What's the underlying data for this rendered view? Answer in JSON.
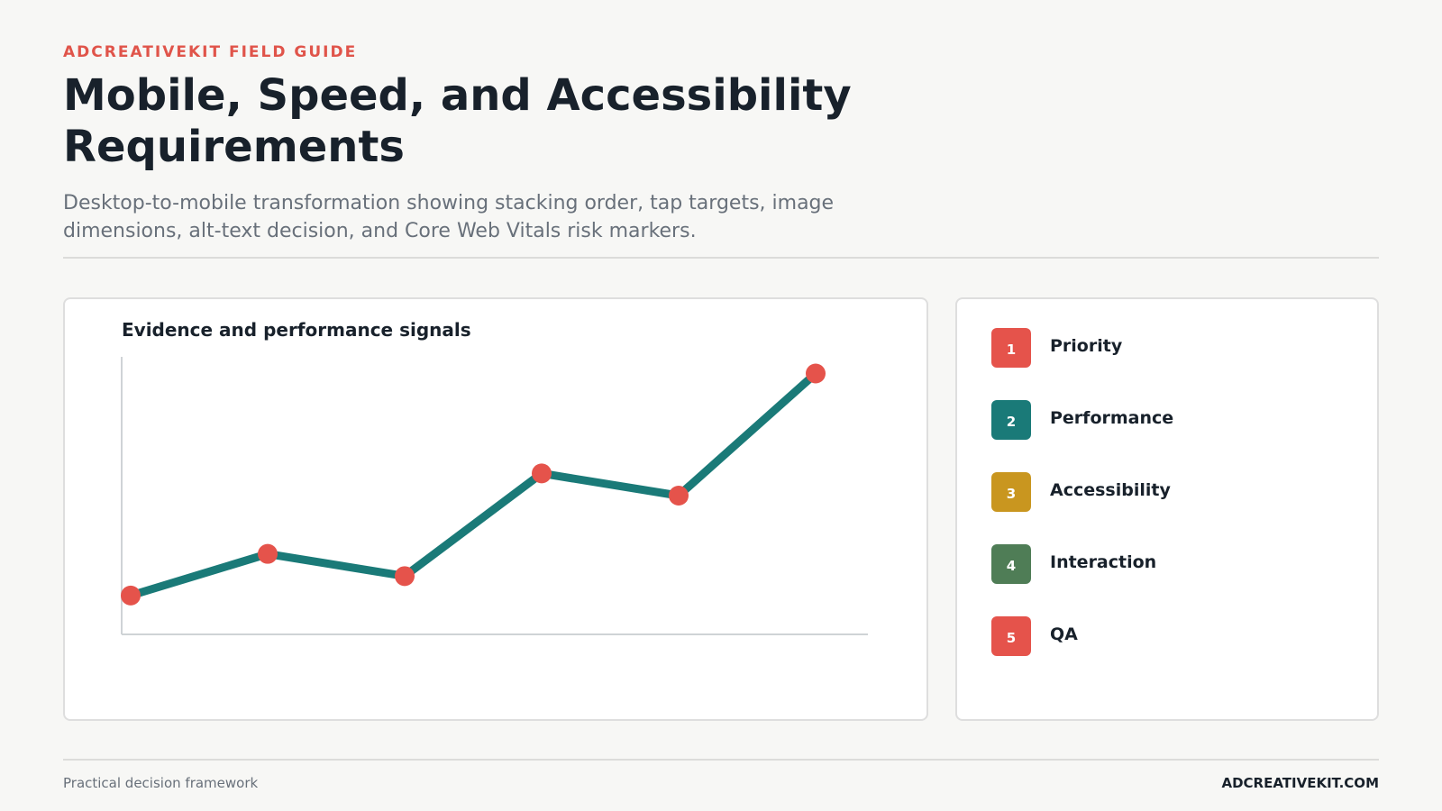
{
  "header": {
    "eyebrow": "ADCREATIVEKIT FIELD GUIDE",
    "title": "Mobile, Speed, and Accessibility Requirements",
    "subtitle": "Desktop-to-mobile transformation showing stacking order, tap targets, image dimensions, alt-text decision, and Core Web Vitals risk markers."
  },
  "chart_data": {
    "type": "line",
    "title": "Evidence and performance signals",
    "xlabel": "",
    "ylabel": "",
    "x": [
      1,
      2,
      3,
      4,
      5,
      6
    ],
    "series": [
      {
        "values": [
          14,
          29,
          21,
          58,
          50,
          94
        ]
      }
    ],
    "ylim": [
      0,
      100
    ],
    "grid": false,
    "line_color": "#1a7a78",
    "marker_color": "#e5534b"
  },
  "legend": {
    "items": [
      {
        "number": "1",
        "label": "Priority",
        "color": "#e5534b"
      },
      {
        "number": "2",
        "label": "Performance",
        "color": "#1a7a78"
      },
      {
        "number": "3",
        "label": "Accessibility",
        "color": "#c9961f"
      },
      {
        "number": "4",
        "label": "Interaction",
        "color": "#4f7d56"
      },
      {
        "number": "5",
        "label": "QA",
        "color": "#e5534b"
      }
    ]
  },
  "footer": {
    "left": "Practical decision framework",
    "right": "ADCREATIVEKIT.COM"
  }
}
